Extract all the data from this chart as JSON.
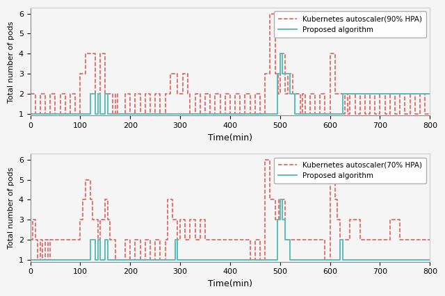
{
  "top": {
    "label": "Kubernetes autoscaler(90% HPA)",
    "red": [
      [
        0,
        2
      ],
      [
        10,
        1
      ],
      [
        20,
        2
      ],
      [
        30,
        1
      ],
      [
        40,
        2
      ],
      [
        50,
        1
      ],
      [
        60,
        2
      ],
      [
        70,
        1
      ],
      [
        80,
        2
      ],
      [
        90,
        1
      ],
      [
        100,
        3
      ],
      [
        110,
        4
      ],
      [
        120,
        4
      ],
      [
        130,
        2
      ],
      [
        135,
        2
      ],
      [
        140,
        4
      ],
      [
        145,
        4
      ],
      [
        150,
        2
      ],
      [
        155,
        2
      ],
      [
        160,
        2
      ],
      [
        165,
        1
      ],
      [
        170,
        2
      ],
      [
        175,
        1
      ],
      [
        180,
        1
      ],
      [
        190,
        2
      ],
      [
        200,
        1
      ],
      [
        210,
        2
      ],
      [
        220,
        1
      ],
      [
        230,
        2
      ],
      [
        240,
        1
      ],
      [
        250,
        2
      ],
      [
        260,
        1
      ],
      [
        270,
        2
      ],
      [
        280,
        3
      ],
      [
        285,
        3
      ],
      [
        290,
        3
      ],
      [
        295,
        2
      ],
      [
        300,
        2
      ],
      [
        305,
        3
      ],
      [
        310,
        3
      ],
      [
        315,
        2
      ],
      [
        320,
        1
      ],
      [
        330,
        2
      ],
      [
        340,
        1
      ],
      [
        350,
        2
      ],
      [
        360,
        1
      ],
      [
        370,
        2
      ],
      [
        380,
        1
      ],
      [
        390,
        2
      ],
      [
        400,
        1
      ],
      [
        410,
        2
      ],
      [
        420,
        1
      ],
      [
        430,
        2
      ],
      [
        440,
        1
      ],
      [
        450,
        2
      ],
      [
        460,
        1
      ],
      [
        470,
        3
      ],
      [
        475,
        3
      ],
      [
        480,
        6
      ],
      [
        485,
        6
      ],
      [
        490,
        3
      ],
      [
        493,
        3
      ],
      [
        496,
        2
      ],
      [
        500,
        4
      ],
      [
        505,
        4
      ],
      [
        510,
        2
      ],
      [
        515,
        3
      ],
      [
        520,
        3
      ],
      [
        525,
        2
      ],
      [
        530,
        2
      ],
      [
        535,
        2
      ],
      [
        540,
        1
      ],
      [
        545,
        2
      ],
      [
        550,
        1
      ],
      [
        560,
        2
      ],
      [
        570,
        1
      ],
      [
        580,
        2
      ],
      [
        590,
        1
      ],
      [
        600,
        4
      ],
      [
        605,
        4
      ],
      [
        610,
        2
      ],
      [
        615,
        2
      ],
      [
        620,
        2
      ],
      [
        625,
        1
      ],
      [
        630,
        2
      ],
      [
        635,
        1
      ],
      [
        640,
        2
      ],
      [
        650,
        1
      ],
      [
        660,
        2
      ],
      [
        670,
        1
      ],
      [
        680,
        2
      ],
      [
        690,
        1
      ],
      [
        700,
        2
      ],
      [
        710,
        1
      ],
      [
        720,
        2
      ],
      [
        730,
        1
      ],
      [
        740,
        2
      ],
      [
        750,
        1
      ],
      [
        760,
        2
      ],
      [
        770,
        1
      ],
      [
        780,
        2
      ],
      [
        790,
        1
      ],
      [
        800,
        1
      ]
    ],
    "teal": [
      [
        0,
        1
      ],
      [
        100,
        1
      ],
      [
        120,
        2
      ],
      [
        125,
        2
      ],
      [
        130,
        1
      ],
      [
        135,
        2
      ],
      [
        140,
        1
      ],
      [
        150,
        2
      ],
      [
        155,
        1
      ],
      [
        160,
        1
      ],
      [
        170,
        1
      ],
      [
        490,
        1
      ],
      [
        495,
        3
      ],
      [
        500,
        4
      ],
      [
        505,
        3
      ],
      [
        510,
        3
      ],
      [
        520,
        2
      ],
      [
        530,
        1
      ],
      [
        615,
        1
      ],
      [
        625,
        2
      ],
      [
        800,
        2
      ]
    ]
  },
  "bottom": {
    "label": "Kubernetes autoscaler(70% HPA)",
    "red": [
      [
        0,
        2
      ],
      [
        5,
        3
      ],
      [
        10,
        2
      ],
      [
        15,
        1
      ],
      [
        20,
        2
      ],
      [
        25,
        1
      ],
      [
        30,
        2
      ],
      [
        35,
        1
      ],
      [
        40,
        2
      ],
      [
        50,
        2
      ],
      [
        60,
        2
      ],
      [
        70,
        2
      ],
      [
        80,
        2
      ],
      [
        90,
        2
      ],
      [
        100,
        3
      ],
      [
        105,
        4
      ],
      [
        110,
        5
      ],
      [
        115,
        5
      ],
      [
        120,
        4
      ],
      [
        125,
        3
      ],
      [
        130,
        3
      ],
      [
        135,
        2
      ],
      [
        140,
        3
      ],
      [
        145,
        3
      ],
      [
        150,
        4
      ],
      [
        155,
        3
      ],
      [
        160,
        2
      ],
      [
        165,
        2
      ],
      [
        170,
        1
      ],
      [
        180,
        1
      ],
      [
        190,
        2
      ],
      [
        200,
        1
      ],
      [
        210,
        2
      ],
      [
        220,
        1
      ],
      [
        230,
        2
      ],
      [
        240,
        1
      ],
      [
        250,
        2
      ],
      [
        260,
        1
      ],
      [
        270,
        2
      ],
      [
        275,
        4
      ],
      [
        280,
        4
      ],
      [
        285,
        3
      ],
      [
        290,
        3
      ],
      [
        295,
        2
      ],
      [
        300,
        3
      ],
      [
        310,
        2
      ],
      [
        320,
        3
      ],
      [
        330,
        2
      ],
      [
        340,
        3
      ],
      [
        350,
        2
      ],
      [
        360,
        2
      ],
      [
        370,
        2
      ],
      [
        380,
        2
      ],
      [
        390,
        2
      ],
      [
        400,
        2
      ],
      [
        410,
        2
      ],
      [
        420,
        2
      ],
      [
        430,
        2
      ],
      [
        440,
        1
      ],
      [
        450,
        2
      ],
      [
        460,
        1
      ],
      [
        470,
        6
      ],
      [
        475,
        6
      ],
      [
        480,
        4
      ],
      [
        485,
        4
      ],
      [
        490,
        3
      ],
      [
        493,
        3
      ],
      [
        497,
        4
      ],
      [
        500,
        4
      ],
      [
        505,
        4
      ],
      [
        510,
        2
      ],
      [
        515,
        2
      ],
      [
        520,
        2
      ],
      [
        530,
        2
      ],
      [
        540,
        2
      ],
      [
        550,
        2
      ],
      [
        560,
        2
      ],
      [
        570,
        2
      ],
      [
        580,
        2
      ],
      [
        590,
        1
      ],
      [
        600,
        5
      ],
      [
        605,
        5
      ],
      [
        610,
        4
      ],
      [
        615,
        3
      ],
      [
        620,
        2
      ],
      [
        625,
        2
      ],
      [
        630,
        2
      ],
      [
        640,
        3
      ],
      [
        650,
        3
      ],
      [
        660,
        2
      ],
      [
        670,
        2
      ],
      [
        680,
        2
      ],
      [
        690,
        2
      ],
      [
        700,
        2
      ],
      [
        710,
        2
      ],
      [
        720,
        3
      ],
      [
        730,
        3
      ],
      [
        740,
        2
      ],
      [
        750,
        2
      ],
      [
        760,
        2
      ],
      [
        770,
        2
      ],
      [
        780,
        2
      ],
      [
        790,
        2
      ],
      [
        800,
        2
      ]
    ],
    "teal": [
      [
        0,
        1
      ],
      [
        100,
        1
      ],
      [
        120,
        2
      ],
      [
        125,
        2
      ],
      [
        130,
        1
      ],
      [
        135,
        2
      ],
      [
        140,
        1
      ],
      [
        150,
        2
      ],
      [
        155,
        1
      ],
      [
        160,
        1
      ],
      [
        170,
        1
      ],
      [
        290,
        2
      ],
      [
        295,
        1
      ],
      [
        490,
        1
      ],
      [
        495,
        3
      ],
      [
        500,
        4
      ],
      [
        505,
        3
      ],
      [
        510,
        2
      ],
      [
        520,
        1
      ],
      [
        530,
        1
      ],
      [
        620,
        2
      ],
      [
        625,
        1
      ],
      [
        800,
        1
      ]
    ]
  },
  "red_color": "#d9534f",
  "teal_color": "#5bbcb8",
  "xlabel": "Time(min)",
  "ylabel": "Total number of pods",
  "xlim": [
    0,
    800
  ],
  "ylim": [
    1,
    6
  ],
  "yticks": [
    1,
    2,
    3,
    4,
    5,
    6
  ],
  "xticks": [
    0,
    100,
    200,
    300,
    400,
    500,
    600,
    700,
    800
  ],
  "bg_color": "#f5f5f5",
  "proposed_label": "Proposed algorithm"
}
